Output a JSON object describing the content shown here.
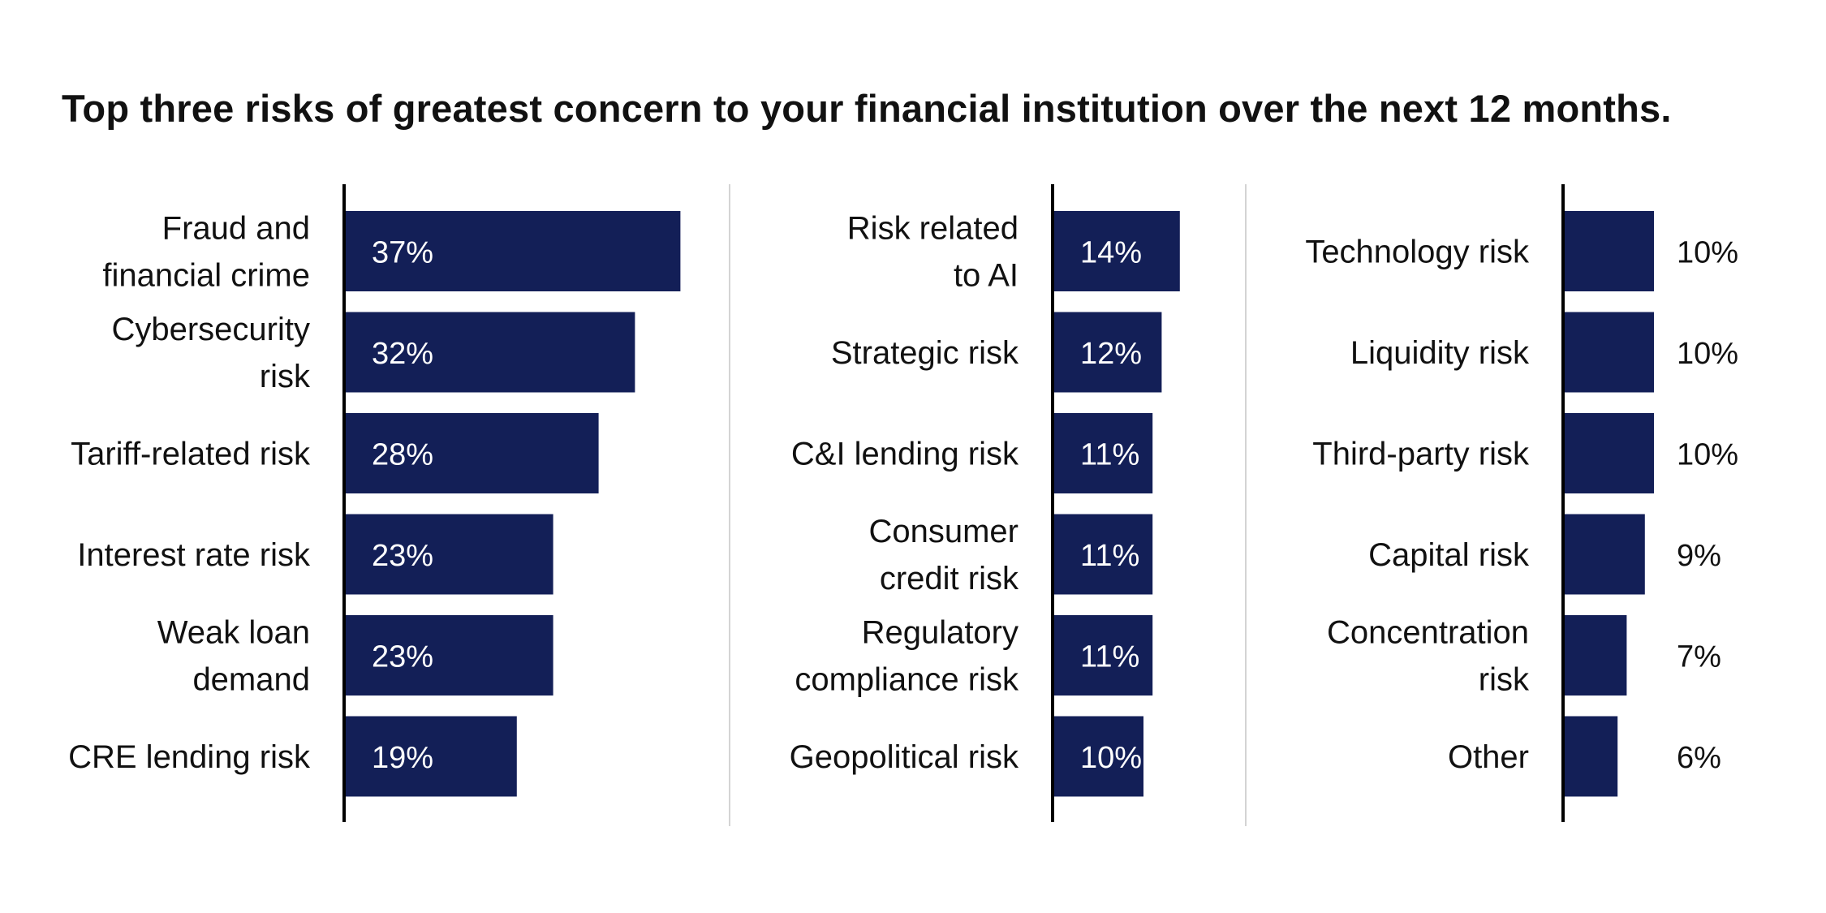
{
  "title": "Top three risks of greatest concern to your financial institution over the next 12 months.",
  "colors": {
    "bar": "#131f57",
    "axis": "#000000",
    "divider": "#d4d4d4",
    "text": "#111111"
  },
  "chart_data": [
    {
      "type": "bar",
      "orientation": "horizontal",
      "label_position": "inside",
      "categories": [
        [
          "Fraud and",
          "financial crime"
        ],
        [
          "Cybersecurity",
          "risk"
        ],
        [
          "Tariff-related risk"
        ],
        [
          "Interest rate risk"
        ],
        [
          "Weak loan",
          "demand"
        ],
        [
          "CRE lending risk"
        ]
      ],
      "values": [
        37,
        32,
        28,
        23,
        23,
        19
      ],
      "value_labels": [
        "37%",
        "32%",
        "28%",
        "23%",
        "23%",
        "19%"
      ]
    },
    {
      "type": "bar",
      "orientation": "horizontal",
      "label_position": "inside",
      "categories": [
        [
          "Risk related",
          "to AI"
        ],
        [
          "Strategic risk"
        ],
        [
          "C&I lending risk"
        ],
        [
          "Consumer",
          "credit risk"
        ],
        [
          "Regulatory",
          "compliance risk"
        ],
        [
          "Geopolitical risk"
        ]
      ],
      "values": [
        14,
        12,
        11,
        11,
        11,
        10
      ],
      "value_labels": [
        "14%",
        "12%",
        "11%",
        "11%",
        "11%",
        "10%"
      ]
    },
    {
      "type": "bar",
      "orientation": "horizontal",
      "label_position": "outside",
      "categories": [
        [
          "Technology risk"
        ],
        [
          "Liquidity risk"
        ],
        [
          "Third-party risk"
        ],
        [
          "Capital risk"
        ],
        [
          "Concentration",
          "risk"
        ],
        [
          "Other"
        ]
      ],
      "values": [
        10,
        10,
        10,
        9,
        7,
        6
      ],
      "value_labels": [
        "10%",
        "10%",
        "10%",
        "9%",
        "7%",
        "6%"
      ]
    }
  ]
}
